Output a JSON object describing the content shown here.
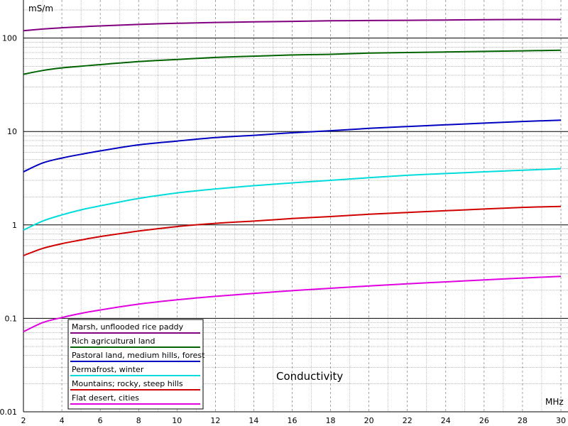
{
  "chart_data": {
    "type": "line",
    "title": "Conductivity",
    "xlabel": "MHz",
    "ylabel": "mS/m",
    "y_scale": "log",
    "xlim": [
      2,
      30
    ],
    "ylim": [
      0.01,
      200
    ],
    "x_ticks": [
      "2",
      "4",
      "6",
      "8",
      "10",
      "12",
      "14",
      "16",
      "18",
      "20",
      "22",
      "24",
      "26",
      "28",
      "30"
    ],
    "y_ticks": [
      "100",
      "10",
      "1",
      "0.1",
      "0.01"
    ],
    "grid": true,
    "legend_position": "bottom-left",
    "x": [
      2,
      3,
      4,
      5,
      6,
      8,
      10,
      12,
      14,
      16,
      18,
      20,
      22,
      24,
      26,
      28,
      30
    ],
    "series": [
      {
        "name": "Marsh, unflooded rice paddy",
        "color": "#800080",
        "values": [
          120,
          125,
          129,
          132,
          135,
          140,
          144,
          147,
          149,
          151,
          153,
          154,
          155,
          156,
          157,
          158,
          158
        ]
      },
      {
        "name": "Rich agricultural land",
        "color": "#006400",
        "values": [
          41,
          45,
          48,
          50,
          52,
          56,
          59,
          62,
          64,
          66,
          67,
          69,
          70,
          71,
          72,
          73,
          74
        ]
      },
      {
        "name": "Pastoral land, medium hills, forest",
        "color": "#0000c0",
        "values": [
          3.7,
          4.6,
          5.2,
          5.7,
          6.2,
          7.2,
          7.9,
          8.6,
          9.1,
          9.7,
          10.2,
          10.8,
          11.3,
          11.8,
          12.3,
          12.8,
          13.2
        ]
      },
      {
        "name": "Permafrost, winter",
        "color": "#00dcdc",
        "values": [
          0.88,
          1.1,
          1.28,
          1.45,
          1.6,
          1.92,
          2.2,
          2.43,
          2.63,
          2.82,
          3.0,
          3.2,
          3.4,
          3.55,
          3.7,
          3.85,
          4.0
        ]
      },
      {
        "name": "Mountains; rocky, steep hills",
        "color": "#d00000",
        "values": [
          0.47,
          0.56,
          0.63,
          0.69,
          0.75,
          0.86,
          0.96,
          1.04,
          1.1,
          1.17,
          1.23,
          1.3,
          1.36,
          1.42,
          1.48,
          1.54,
          1.58
        ]
      },
      {
        "name": "Flat desert, cities",
        "color": "#e000e0",
        "values": [
          0.072,
          0.09,
          0.102,
          0.113,
          0.123,
          0.142,
          0.158,
          0.172,
          0.185,
          0.198,
          0.21,
          0.222,
          0.234,
          0.246,
          0.258,
          0.27,
          0.282
        ]
      }
    ]
  }
}
